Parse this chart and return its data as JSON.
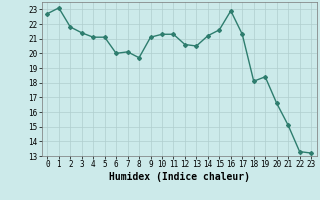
{
  "x": [
    0,
    1,
    2,
    3,
    4,
    5,
    6,
    7,
    8,
    9,
    10,
    11,
    12,
    13,
    14,
    15,
    16,
    17,
    18,
    19,
    20,
    21,
    22,
    23
  ],
  "y": [
    22.7,
    23.1,
    21.8,
    21.4,
    21.1,
    21.1,
    20.0,
    20.1,
    19.7,
    21.1,
    21.3,
    21.3,
    20.6,
    20.5,
    21.2,
    21.6,
    22.9,
    21.3,
    18.1,
    18.4,
    16.6,
    15.1,
    13.3,
    13.2
  ],
  "line_color": "#2e7d6e",
  "marker": "D",
  "marker_size": 2.0,
  "line_width": 1.0,
  "bg_color": "#cceaea",
  "grid_color": "#b0cece",
  "xlabel": "Humidex (Indice chaleur)",
  "ylim": [
    13,
    23.5
  ],
  "yticks": [
    13,
    14,
    15,
    16,
    17,
    18,
    19,
    20,
    21,
    22,
    23
  ],
  "xticks": [
    0,
    1,
    2,
    3,
    4,
    5,
    6,
    7,
    8,
    9,
    10,
    11,
    12,
    13,
    14,
    15,
    16,
    17,
    18,
    19,
    20,
    21,
    22,
    23
  ],
  "xlabel_fontsize": 7,
  "tick_fontsize": 5.5
}
